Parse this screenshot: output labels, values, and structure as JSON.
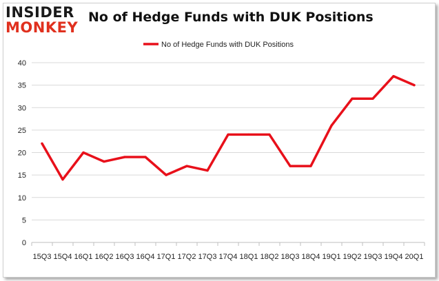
{
  "logo": {
    "top": "INSIDER",
    "bottom": "MONKEY"
  },
  "chart_data": {
    "type": "line",
    "title": "No of Hedge Funds with DUK Positions",
    "categories": [
      "15Q3",
      "15Q4",
      "16Q1",
      "16Q2",
      "16Q3",
      "16Q4",
      "17Q1",
      "17Q2",
      "17Q3",
      "17Q4",
      "18Q1",
      "18Q2",
      "18Q3",
      "18Q4",
      "19Q1",
      "19Q2",
      "19Q3",
      "19Q4",
      "20Q1"
    ],
    "series": [
      {
        "name": "No of Hedge Funds with DUK Positions",
        "values": [
          22,
          14,
          20,
          18,
          19,
          19,
          15,
          17,
          16,
          24,
          24,
          24,
          17,
          17,
          26,
          32,
          32,
          37,
          35
        ]
      }
    ],
    "ylim": [
      0,
      40
    ],
    "yticks": [
      0,
      5,
      10,
      15,
      20,
      25,
      30,
      35,
      40
    ],
    "grid": true,
    "legend": "top",
    "color": "#e8101a"
  }
}
